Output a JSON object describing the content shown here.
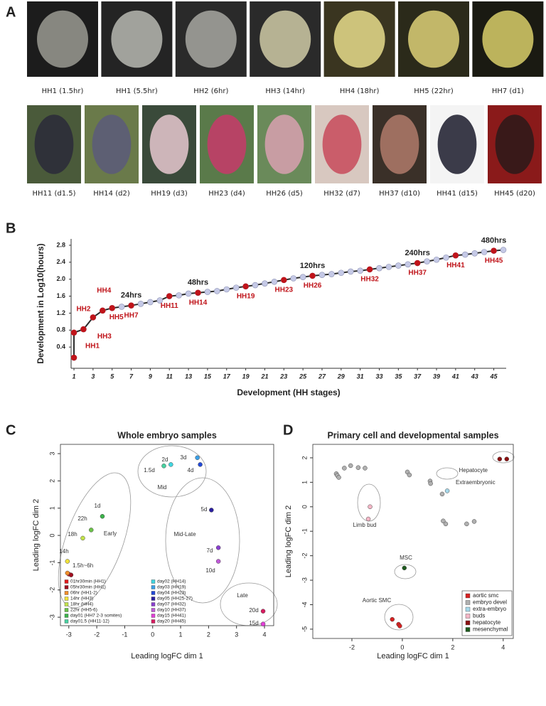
{
  "panels": [
    "A",
    "B",
    "C",
    "D"
  ],
  "photos": {
    "row1": [
      "HH1 (1.5hr)",
      "HH1 (5.5hr)",
      "HH2 (6hr)",
      "HH3 (14hr)",
      "HH4 (18hr)",
      "HH5 (22hr)",
      "HH7 (d1)"
    ],
    "row2": [
      "HH11 (d1.5)",
      "HH14 (d2)",
      "HH19 (d3)",
      "HH23 (d4)",
      "HH26 (d5)",
      "HH32 (d7)",
      "HH37 (d10)",
      "HH41 (d15)",
      "HH45 (d20)"
    ]
  },
  "chart_data": [
    {
      "type": "line",
      "xlabel": "Development (HH stages)",
      "ylabel": "Development in Log10(hours)",
      "series": [
        {
          "color": "#2b2b2b",
          "marker_color": "#c5c9e6",
          "x": [
            1,
            1,
            2,
            3,
            4,
            5,
            6,
            7,
            8,
            9,
            10,
            11,
            12,
            13,
            14,
            15,
            16,
            17,
            18,
            19,
            20,
            21,
            22,
            23,
            24,
            25,
            26,
            27,
            28,
            29,
            30,
            31,
            32,
            33,
            34,
            35,
            36,
            37,
            38,
            39,
            40,
            41,
            42,
            43,
            44,
            45,
            46
          ],
          "values": [
            0.15,
            0.74,
            0.82,
            1.1,
            1.26,
            1.32,
            1.35,
            1.38,
            1.42,
            1.46,
            1.5,
            1.6,
            1.62,
            1.66,
            1.68,
            1.7,
            1.72,
            1.76,
            1.8,
            1.83,
            1.86,
            1.9,
            1.94,
            1.98,
            2.02,
            2.05,
            2.08,
            2.1,
            2.12,
            2.15,
            2.18,
            2.2,
            2.23,
            2.26,
            2.29,
            2.32,
            2.35,
            2.38,
            2.42,
            2.46,
            2.51,
            2.56,
            2.58,
            2.61,
            2.64,
            2.67,
            2.69
          ]
        },
        {
          "color": "#c0141a",
          "x": [
            1,
            1,
            2,
            3,
            4,
            5,
            7,
            11,
            14,
            19,
            23,
            26,
            32,
            37,
            41,
            45
          ],
          "values": [
            0.15,
            0.74,
            0.82,
            1.1,
            1.26,
            1.32,
            1.38,
            1.6,
            1.68,
            1.83,
            1.98,
            2.08,
            2.23,
            2.38,
            2.56,
            2.67
          ],
          "point_labels": [
            "HH1",
            null,
            "HH2",
            "HH3",
            "HH4",
            "HH5",
            "HH7",
            "HH11",
            "HH14",
            "HH19",
            "HH23",
            "HH26",
            "HH32",
            "HH37",
            "HH41",
            "HH45"
          ]
        }
      ],
      "annotations": [
        {
          "text": "24hrs",
          "x": 7
        },
        {
          "text": "48hrs",
          "x": 14
        },
        {
          "text": "120hrs",
          "x": 26
        },
        {
          "text": "240hrs",
          "x": 37
        },
        {
          "text": "480hrs",
          "x": 45
        }
      ],
      "xlim": [
        0.7,
        46.3
      ],
      "xticks": [
        1,
        3,
        5,
        7,
        9,
        11,
        13,
        15,
        17,
        19,
        21,
        23,
        25,
        27,
        29,
        31,
        33,
        35,
        37,
        39,
        41,
        43,
        45
      ],
      "ylim": [
        -0.1,
        2.95
      ],
      "yticks": [
        0.4,
        0.8,
        1.2,
        1.6,
        {
          "value": 2,
          "label": "2.0"
        },
        2.4,
        2.8
      ]
    },
    {
      "type": "scatter",
      "title": "Whole embryo samples",
      "xlabel": "Leading logFC dim 1",
      "ylabel": "Leading logFC dim 2",
      "legend": "lower left",
      "series": [
        {
          "name": "01hr30min (HH1)",
          "color": "#e41a1c",
          "x": [
            -3.0
          ],
          "values": [
            -1.42
          ]
        },
        {
          "name": "05hr30min (HH1)",
          "color": "#a01020",
          "x": [
            -2.92
          ],
          "values": [
            -1.45
          ]
        },
        {
          "name": "06hr (HH1-2)",
          "color": "#f28e2b",
          "x": [
            -3.05
          ],
          "values": [
            -1.38
          ]
        },
        {
          "name": "14hr (HH3)",
          "color": "#f1e33b",
          "x": [
            -3.05
          ],
          "values": [
            -0.95
          ]
        },
        {
          "name": "18hr (HH4)",
          "color": "#c3e34a",
          "x": [
            -2.5
          ],
          "values": [
            -0.1
          ]
        },
        {
          "name": "22hr (HH5-6)",
          "color": "#6cc24a",
          "x": [
            -2.2
          ],
          "values": [
            0.2
          ]
        },
        {
          "name": "day01 (HH7 2-3 somites)",
          "color": "#3cb44b",
          "x": [
            -1.8
          ],
          "values": [
            0.7
          ]
        },
        {
          "name": "day01.5 (HH11-12)",
          "color": "#48d1a0",
          "x": [
            0.4
          ],
          "values": [
            2.55
          ]
        },
        {
          "name": "day02 (HH14)",
          "color": "#3fd6e0",
          "x": [
            0.65
          ],
          "values": [
            2.6
          ]
        },
        {
          "name": "day03 (HH19)",
          "color": "#3aa0e8",
          "x": [
            1.6
          ],
          "values": [
            2.85
          ]
        },
        {
          "name": "day04 (HH23)",
          "color": "#2249d8",
          "x": [
            1.7
          ],
          "values": [
            2.6
          ]
        },
        {
          "name": "day05 (HH25-27)",
          "color": "#2a1fa0",
          "x": [
            2.1
          ],
          "values": [
            0.93
          ]
        },
        {
          "name": "day07 (HH32)",
          "color": "#8a3fd0",
          "x": [
            2.35
          ],
          "values": [
            -0.45
          ]
        },
        {
          "name": "day10 (HH37)",
          "color": "#c05ad8",
          "x": [
            2.35
          ],
          "values": [
            -0.95
          ]
        },
        {
          "name": "day15 (HH41)",
          "color": "#e23fd8",
          "x": [
            3.95
          ],
          "values": [
            -3.25
          ]
        },
        {
          "name": "day20 (HH45)",
          "color": "#d81b60",
          "x": [
            3.95
          ],
          "values": [
            -2.78
          ]
        }
      ],
      "annotations": [
        "1d",
        "22h",
        "18h",
        "14h",
        "1.5h~6h",
        "1.5d",
        "2d",
        "3d",
        "4d",
        "5d",
        "7d",
        "10d",
        "20d",
        "15d",
        "Early",
        "Mid",
        "Mid-Late",
        "Late"
      ],
      "xlim": [
        -3.3,
        4.33
      ],
      "xticks": [
        -3,
        -2,
        -1,
        0,
        1,
        2,
        3,
        4
      ],
      "ylim": [
        -3.31,
        3.34
      ],
      "yticks": [
        -3,
        -2,
        -1,
        0,
        1,
        2,
        3
      ]
    },
    {
      "type": "scatter",
      "title": "Primary cell and developmental samples",
      "xlabel": "Leading logFC dim 1",
      "ylabel": "Leading logFC dim 2",
      "legend": "lower right",
      "series": [
        {
          "name": "aortic smc",
          "color": "#d62020",
          "x": [
            -0.4,
            -0.15,
            -0.1
          ],
          "values": [
            -4.6,
            -4.8,
            -4.87
          ]
        },
        {
          "name": "embryo devel",
          "color": "#b0b0b0",
          "x": [
            -2.62,
            -2.58,
            -2.52,
            -2.3,
            -2.05,
            -1.75,
            -1.48,
            0.2,
            0.28,
            1.1,
            1.12,
            1.58,
            1.62,
            1.72,
            2.55,
            2.85
          ],
          "values": [
            1.35,
            1.28,
            1.2,
            1.58,
            1.68,
            1.6,
            1.58,
            1.42,
            1.3,
            1.05,
            0.95,
            0.52,
            -0.58,
            -0.7,
            -0.7,
            -0.6
          ]
        },
        {
          "name": "extra-embryo",
          "color": "#a6d8ea",
          "x": [
            1.78
          ],
          "values": [
            0.65
          ]
        },
        {
          "name": "buds",
          "color": "#f4b6c6",
          "x": [
            -1.28,
            -1.35
          ],
          "values": [
            0,
            -0.5
          ]
        },
        {
          "name": "hepatocyte",
          "color": "#8b1010",
          "x": [
            3.86,
            4.14
          ],
          "values": [
            1.95,
            1.95
          ]
        },
        {
          "name": "mesenchymal",
          "color": "#1e5a1e",
          "x": [
            0.08
          ],
          "values": [
            -2.5
          ]
        }
      ],
      "annotations": [
        "Hepatocyte",
        "Extraembryonic",
        "Limb bud",
        "MSC",
        "Aortic SMC"
      ],
      "xlim": [
        -3.55,
        4.4
      ],
      "xticks": [
        -2,
        0,
        2,
        4
      ],
      "ylim": [
        -5.38,
        2.55
      ],
      "yticks": [
        -5,
        -4,
        -3,
        -2,
        -1,
        0,
        1,
        2
      ]
    }
  ]
}
